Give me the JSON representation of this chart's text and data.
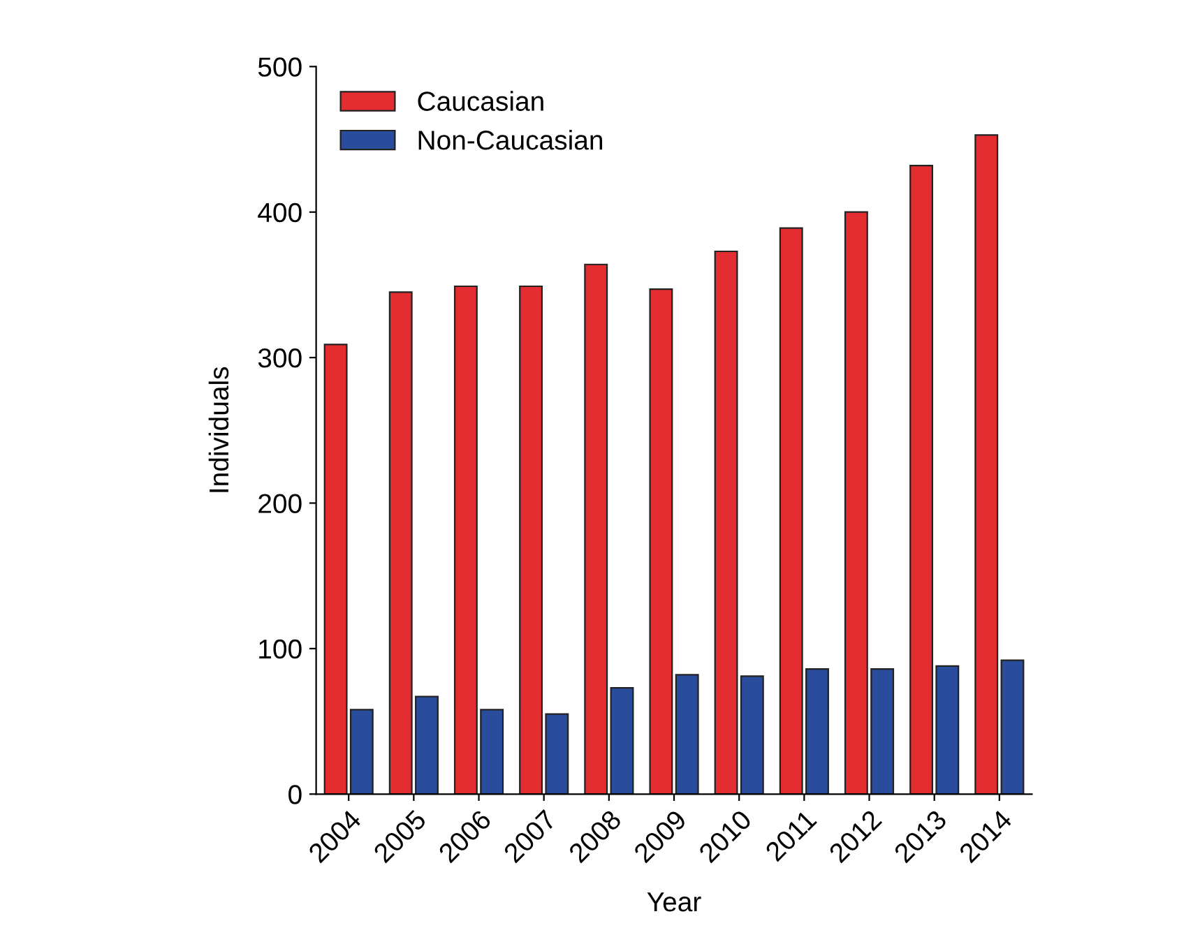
{
  "chart_data": {
    "type": "bar",
    "xlabel": "Year",
    "ylabel": "Individuals",
    "categories": [
      "2004",
      "2005",
      "2006",
      "2007",
      "2008",
      "2009",
      "2010",
      "2011",
      "2012",
      "2013",
      "2014"
    ],
    "series": [
      {
        "name": "Caucasian",
        "color": "#e32d30",
        "values": [
          309,
          345,
          349,
          349,
          364,
          347,
          373,
          389,
          400,
          432,
          453
        ]
      },
      {
        "name": "Non-Caucasian",
        "color": "#2a4c9c",
        "values": [
          58,
          67,
          58,
          55,
          73,
          82,
          81,
          86,
          86,
          88,
          92
        ]
      }
    ],
    "ylim": [
      0,
      500
    ],
    "yticks": [
      0,
      100,
      200,
      300,
      400,
      500
    ],
    "grid": false,
    "legend": "top left"
  }
}
